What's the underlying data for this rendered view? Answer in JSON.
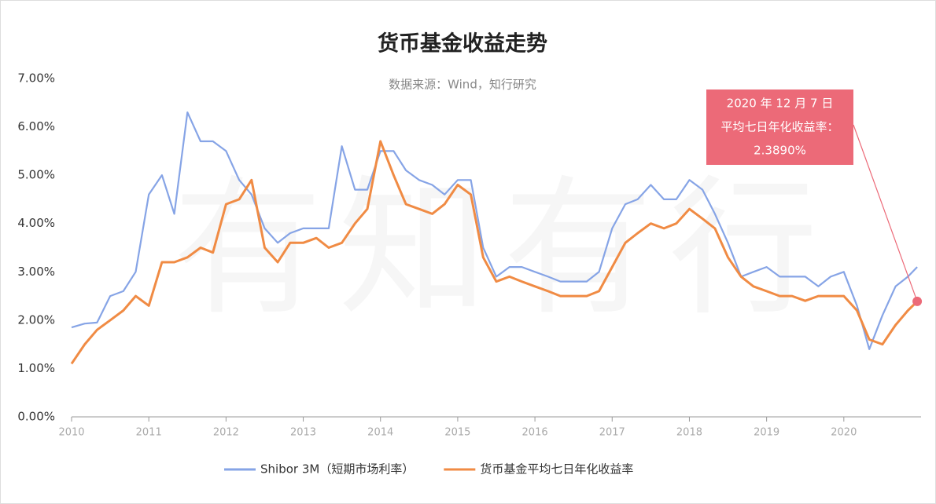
{
  "chart_data": {
    "type": "line",
    "title": "货币基金收益走势",
    "subtitle": "数据来源：Wind，知行研究",
    "watermark": "有知有行",
    "x": [
      2010.0,
      2010.17,
      2010.33,
      2010.5,
      2010.67,
      2010.83,
      2011.0,
      2011.17,
      2011.33,
      2011.5,
      2011.67,
      2011.83,
      2012.0,
      2012.17,
      2012.33,
      2012.5,
      2012.67,
      2012.83,
      2013.0,
      2013.17,
      2013.33,
      2013.5,
      2013.67,
      2013.83,
      2014.0,
      2014.17,
      2014.33,
      2014.5,
      2014.67,
      2014.83,
      2015.0,
      2015.17,
      2015.33,
      2015.5,
      2015.67,
      2015.83,
      2016.0,
      2016.17,
      2016.33,
      2016.5,
      2016.67,
      2016.83,
      2017.0,
      2017.17,
      2017.33,
      2017.5,
      2017.67,
      2017.83,
      2018.0,
      2018.17,
      2018.33,
      2018.5,
      2018.67,
      2018.83,
      2019.0,
      2019.17,
      2019.33,
      2019.5,
      2019.67,
      2019.83,
      2020.0,
      2020.17,
      2020.33,
      2020.5,
      2020.67,
      2020.83,
      2020.95
    ],
    "series": [
      {
        "name": "Shibor 3M（短期市场利率）",
        "color": "#86a4e6",
        "values": [
          1.85,
          1.93,
          1.95,
          2.5,
          2.6,
          3.0,
          4.6,
          5.0,
          4.2,
          6.3,
          5.7,
          5.7,
          5.5,
          4.9,
          4.6,
          3.9,
          3.6,
          3.8,
          3.9,
          3.9,
          3.9,
          5.6,
          4.7,
          4.7,
          5.5,
          5.5,
          5.1,
          4.9,
          4.8,
          4.6,
          4.9,
          4.9,
          3.5,
          2.9,
          3.1,
          3.1,
          3.0,
          2.9,
          2.8,
          2.8,
          2.8,
          3.0,
          3.9,
          4.4,
          4.5,
          4.8,
          4.5,
          4.5,
          4.9,
          4.7,
          4.2,
          3.6,
          2.9,
          3.0,
          3.1,
          2.9,
          2.9,
          2.9,
          2.7,
          2.9,
          3.0,
          2.3,
          1.4,
          2.1,
          2.7,
          2.9,
          3.1
        ]
      },
      {
        "name": "货币基金平均七日年化收益率",
        "color": "#f08b44",
        "values": [
          1.1,
          1.5,
          1.8,
          2.0,
          2.2,
          2.5,
          2.3,
          3.2,
          3.2,
          3.3,
          3.5,
          3.4,
          4.4,
          4.5,
          4.9,
          3.5,
          3.2,
          3.6,
          3.6,
          3.7,
          3.5,
          3.6,
          4.0,
          4.3,
          5.7,
          5.0,
          4.4,
          4.3,
          4.2,
          4.4,
          4.8,
          4.6,
          3.3,
          2.8,
          2.9,
          2.8,
          2.7,
          2.6,
          2.5,
          2.5,
          2.5,
          2.6,
          3.1,
          3.6,
          3.8,
          4.0,
          3.9,
          4.0,
          4.3,
          4.1,
          3.9,
          3.3,
          2.9,
          2.7,
          2.6,
          2.5,
          2.5,
          2.4,
          2.5,
          2.5,
          2.5,
          2.2,
          1.6,
          1.5,
          1.9,
          2.2,
          2.389
        ]
      }
    ],
    "annotation": [
      "2020 年 12 月 7 日",
      "平均七日年化收益率：",
      "2.3890%"
    ],
    "xlim": [
      2010,
      2021
    ],
    "xticks": [
      2010,
      2011,
      2012,
      2013,
      2014,
      2015,
      2016,
      2017,
      2018,
      2019,
      2020
    ],
    "ylim": [
      0,
      7
    ],
    "yticks": [
      {
        "value": 0,
        "label": "0.00%"
      },
      {
        "value": 1,
        "label": "1.00%"
      },
      {
        "value": 2,
        "label": "2.00%"
      },
      {
        "value": 3,
        "label": "3.00%"
      },
      {
        "value": 4,
        "label": "4.00%"
      },
      {
        "value": 5,
        "label": "5.00%"
      },
      {
        "value": 6,
        "label": "6.00%"
      },
      {
        "value": 7,
        "label": "7.00%"
      }
    ],
    "annotation_color": "#ec6a78"
  }
}
